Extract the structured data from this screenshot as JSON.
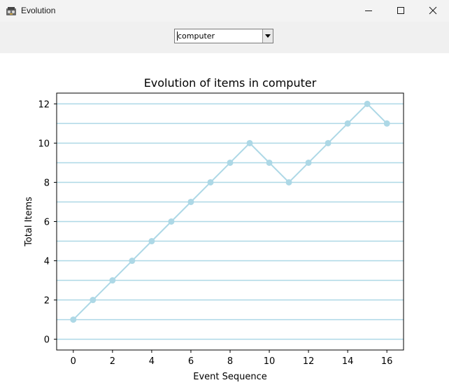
{
  "window": {
    "title": "Evolution",
    "icons": {
      "app": "app-icon",
      "minimize": "minimize-icon",
      "maximize": "maximize-icon",
      "close": "close-icon"
    }
  },
  "selector": {
    "value": "computer",
    "icon": "chevron-down-icon"
  },
  "chart_data": {
    "type": "line",
    "title": "Evolution of items in computer",
    "xlabel": "Event Sequence",
    "ylabel": "Total Items",
    "x": [
      0,
      1,
      2,
      3,
      4,
      5,
      6,
      7,
      8,
      9,
      10,
      11,
      12,
      13,
      14,
      15,
      16
    ],
    "y": [
      1,
      2,
      3,
      4,
      5,
      6,
      7,
      8,
      9,
      10,
      9,
      8,
      9,
      10,
      11,
      12,
      11
    ],
    "xticks": [
      "0",
      "2",
      "4",
      "6",
      "8",
      "10",
      "12",
      "14",
      "16"
    ],
    "yticks": [
      "0",
      "2",
      "4",
      "6",
      "8",
      "10",
      "12"
    ],
    "xlim": [
      -0.85,
      16.85
    ],
    "ylim": [
      -0.55,
      12.55
    ],
    "grid": "horizontal",
    "color": "#add8e6"
  }
}
